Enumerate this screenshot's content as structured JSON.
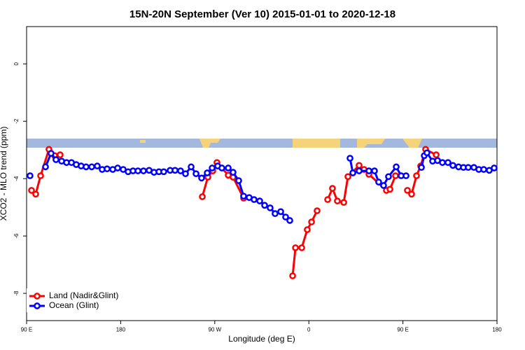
{
  "chart_data": {
    "type": "line",
    "title": "15N-20N September (Ver 10)   2015-01-01 to 2020-12-18",
    "x_label": "Longitude (deg E)",
    "y_label": "XCO2 - MLO trend (ppm)",
    "xlim": [
      90,
      540
    ],
    "xticks": [
      {
        "value": 90,
        "label": "90 E"
      },
      180,
      {
        "value": 270,
        "label": "90 W"
      },
      {
        "value": 360,
        "label": "0"
      },
      {
        "value": 450,
        "label": "90 E"
      },
      {
        "value": 540,
        "label": "180"
      }
    ],
    "ylim": [
      -8.95,
      1.3
    ],
    "yticks": [
      0,
      -2,
      -4,
      -6,
      -8
    ],
    "legend": "bottom-left",
    "series": [
      {
        "name": "Land (Nadir&Glint)",
        "color": "#ff0000",
        "x": [
          94.7,
          98.7,
          103.4,
          111.4,
          116.8,
          122.1,
          null,
          258.1,
          263.4,
          268.1,
          272.1,
          282.9,
          287.5,
          297.6,
          null,
          344.5,
          347.2,
          353.2,
          358.5,
          362.6,
          367.9,
          null,
          378.0,
          382.6,
          387.3,
          393.4,
          397.4,
          408.1,
          412.8,
          417.5,
          434.2,
          437.6,
          442.9,
          null,
          454.3,
          458.3,
          463.0,
          467.0,
          471.7,
          481.8
        ],
        "values": [
          -4.41,
          -4.54,
          -3.9,
          -2.98,
          -3.2,
          -3.17,
          null,
          -4.63,
          -3.95,
          -3.73,
          -3.44,
          -3.88,
          -3.95,
          -4.68,
          null,
          -7.39,
          -6.41,
          -6.41,
          -5.78,
          -5.51,
          -5.12,
          null,
          -4.73,
          -4.34,
          -4.78,
          -4.83,
          -3.93,
          -3.54,
          -3.68,
          -3.85,
          -4.41,
          -4.37,
          -3.9,
          null,
          -4.41,
          -4.54,
          -3.9,
          -3.56,
          -2.98,
          -3.17
        ]
      },
      {
        "name": "Ocean (Glint)",
        "color": "#0000ff",
        "x": [
          93.3,
          null,
          108.1,
          113.4,
          118.1,
          123.5,
          128.2,
          132.9,
          137.5,
          142.2,
          146.9,
          152.3,
          157.6,
          162.3,
          167.0,
          172.4,
          177.1,
          182.4,
          187.1,
          191.8,
          196.5,
          201.8,
          207.2,
          211.9,
          216.6,
          221.2,
          227.3,
          232.0,
          237.3,
          242.0,
          247.4,
          252.1,
          257.4,
          262.8,
          267.5,
          272.8,
          276.8,
          282.9,
          287.5,
          292.9,
          297.6,
          302.9,
          307.6,
          313.0,
          317.7,
          323.0,
          327.7,
          333.1,
          337.8,
          341.8,
          null,
          399.4,
          402.1,
          408.1,
          417.5,
          422.8,
          426.8,
          431.5,
          436.2,
          443.6,
          448.3,
          453.0,
          null,
          467.7,
          470.4,
          473.0,
          478.4,
          483.1,
          487.8,
          493.1,
          497.8,
          503.2,
          507.9,
          512.5,
          517.9,
          522.6,
          527.3,
          532.6,
          537.3
        ],
        "values": [
          -3.9,
          null,
          -3.59,
          -3.12,
          -3.34,
          -3.39,
          -3.44,
          -3.44,
          -3.51,
          -3.56,
          -3.59,
          -3.59,
          -3.56,
          -3.68,
          -3.66,
          -3.68,
          -3.63,
          -3.68,
          -3.76,
          -3.73,
          -3.73,
          -3.73,
          -3.71,
          -3.78,
          -3.76,
          -3.76,
          -3.71,
          -3.71,
          -3.73,
          -3.83,
          -3.59,
          -3.83,
          -3.98,
          -3.8,
          -3.63,
          -3.56,
          -3.63,
          -3.63,
          -3.78,
          -4.07,
          -4.61,
          -4.66,
          -4.73,
          -4.78,
          -4.93,
          -5.02,
          -5.22,
          -5.15,
          -5.34,
          -5.46,
          null,
          -3.29,
          -3.8,
          -3.73,
          -3.73,
          -3.73,
          -4.12,
          -4.24,
          -3.93,
          -3.59,
          -3.9,
          -3.9,
          null,
          -3.61,
          -3.2,
          -3.1,
          -3.39,
          -3.37,
          -3.44,
          -3.44,
          -3.54,
          -3.59,
          -3.61,
          -3.61,
          -3.61,
          -3.68,
          -3.68,
          -3.71,
          -3.63
        ]
      }
    ]
  }
}
